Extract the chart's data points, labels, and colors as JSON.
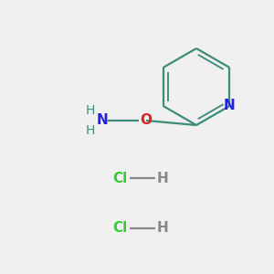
{
  "background_color": "#f0f0f0",
  "ring_color": "#3d8c7a",
  "N_color": "#2222dd",
  "O_color": "#dd2222",
  "NH_color": "#3d8c7a",
  "Cl_color": "#33cc33",
  "H_bond_color": "#888888",
  "bond_color": "#3d8c7a",
  "line_width": 1.6,
  "font_size_atom": 11,
  "font_size_hcl": 11,
  "fig_w": 3.0,
  "fig_h": 3.0,
  "dpi": 100,
  "xlim": [
    0,
    300
  ],
  "ylim": [
    0,
    300
  ]
}
